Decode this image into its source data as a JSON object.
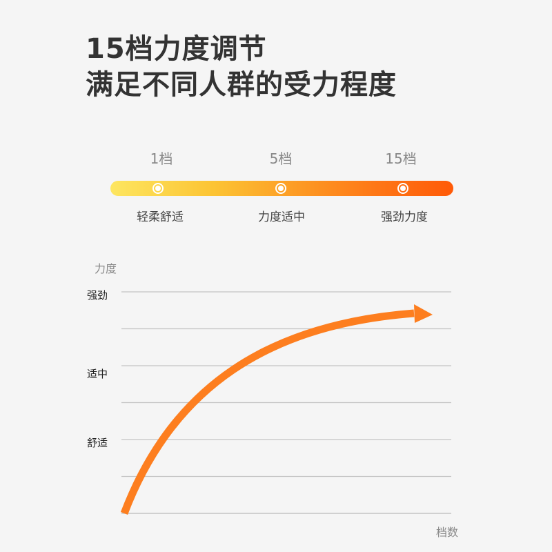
{
  "headline": {
    "line1": "15档力度调节",
    "line2": "满足不同人群的受力程度"
  },
  "levels": [
    {
      "label": "1档",
      "desc": "轻柔舒适"
    },
    {
      "label": "5档",
      "desc": "力度适中"
    },
    {
      "label": "15档",
      "desc": "强劲力度"
    }
  ],
  "colors": {
    "bar_start": "#fde660",
    "bar_end": "#ff5a08",
    "curve": "#fd7e1f",
    "grid": "#c4c4c4",
    "text_dark": "#333333",
    "text_muted": "#888888"
  },
  "chart_data": {
    "type": "line",
    "ylabel": "力度",
    "xlabel": "档数",
    "y_ticks": [
      {
        "value": 3,
        "label": "强劲"
      },
      {
        "value": 2,
        "label": "适中"
      },
      {
        "value": 1,
        "label": "舒适"
      }
    ],
    "ylim": [
      0,
      3
    ],
    "grid": true,
    "series": [
      {
        "shape": "increasing concave curve ending in arrow",
        "values": [
          0,
          0.9,
          1.8,
          2.25,
          2.55,
          2.68
        ]
      }
    ]
  }
}
